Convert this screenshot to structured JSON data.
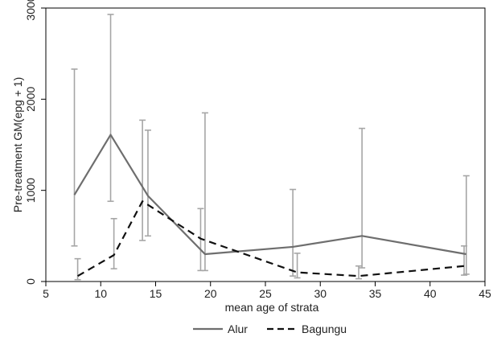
{
  "chart_data": {
    "type": "line",
    "title": "",
    "xlabel": "mean age of strata",
    "ylabel": "Pre-treatment GM(epg + 1)",
    "xlim": [
      5,
      45
    ],
    "ylim": [
      0,
      3000
    ],
    "xticks": [
      5,
      10,
      15,
      20,
      25,
      30,
      35,
      40,
      45
    ],
    "yticks": [
      0,
      1000,
      2000,
      3000
    ],
    "grid": false,
    "legend_position": "bottom-center",
    "series": [
      {
        "name": "Alur",
        "style": "solid",
        "color": "#6e6e6e",
        "x": [
          7.6,
          10.9,
          14.3,
          19.5,
          27.5,
          33.8,
          43.3
        ],
        "y": [
          950,
          1610,
          940,
          300,
          380,
          500,
          300
        ],
        "error_low": [
          390,
          880,
          500,
          120,
          60,
          150,
          80
        ],
        "error_high": [
          2330,
          2930,
          1660,
          1850,
          1010,
          1680,
          1160
        ]
      },
      {
        "name": "Bagungu",
        "style": "dashed",
        "color": "#111111",
        "x": [
          7.9,
          11.2,
          13.8,
          19.1,
          27.9,
          33.5,
          43.1
        ],
        "y": [
          60,
          290,
          880,
          470,
          100,
          60,
          170
        ],
        "error_low": [
          20,
          140,
          450,
          120,
          40,
          30,
          70
        ],
        "error_high": [
          250,
          690,
          1770,
          800,
          310,
          170,
          390
        ]
      }
    ]
  }
}
